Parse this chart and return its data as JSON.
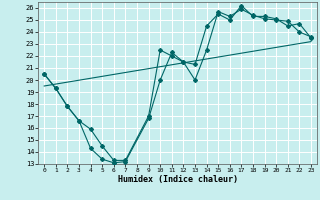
{
  "xlabel": "Humidex (Indice chaleur)",
  "bg_color": "#c8eeee",
  "grid_color": "#b0d8d8",
  "line_color": "#006666",
  "xlim": [
    -0.5,
    23.5
  ],
  "ylim": [
    13,
    26.5
  ],
  "xticks": [
    0,
    1,
    2,
    3,
    4,
    5,
    6,
    7,
    8,
    9,
    10,
    11,
    12,
    13,
    14,
    15,
    16,
    17,
    18,
    19,
    20,
    21,
    22,
    23
  ],
  "yticks": [
    13,
    14,
    15,
    16,
    17,
    18,
    19,
    20,
    21,
    22,
    23,
    24,
    25,
    26
  ],
  "line1_x": [
    0,
    1,
    2,
    3,
    4,
    5,
    6,
    7,
    9,
    10,
    11,
    12,
    13,
    14,
    15,
    16,
    17,
    18,
    19,
    20,
    21,
    22,
    23
  ],
  "line1_y": [
    20.5,
    19.3,
    17.8,
    16.6,
    14.3,
    13.4,
    13.1,
    13.2,
    16.8,
    20.0,
    22.3,
    21.5,
    21.3,
    24.5,
    25.5,
    25.0,
    26.2,
    25.3,
    25.3,
    25.1,
    24.5,
    24.7,
    23.5
  ],
  "line2_x": [
    0,
    1,
    2,
    3,
    4,
    5,
    6,
    7,
    9,
    10,
    11,
    12,
    13,
    14,
    15,
    16,
    17,
    18,
    19,
    20,
    21,
    22,
    23
  ],
  "line2_y": [
    20.5,
    19.3,
    17.8,
    16.6,
    15.9,
    14.5,
    13.3,
    13.3,
    17.0,
    22.5,
    22.0,
    21.5,
    20.0,
    22.5,
    25.7,
    25.3,
    25.9,
    25.4,
    25.1,
    25.0,
    24.9,
    24.0,
    23.6
  ],
  "line3_x": [
    0,
    23
  ],
  "line3_y": [
    19.5,
    23.2
  ]
}
